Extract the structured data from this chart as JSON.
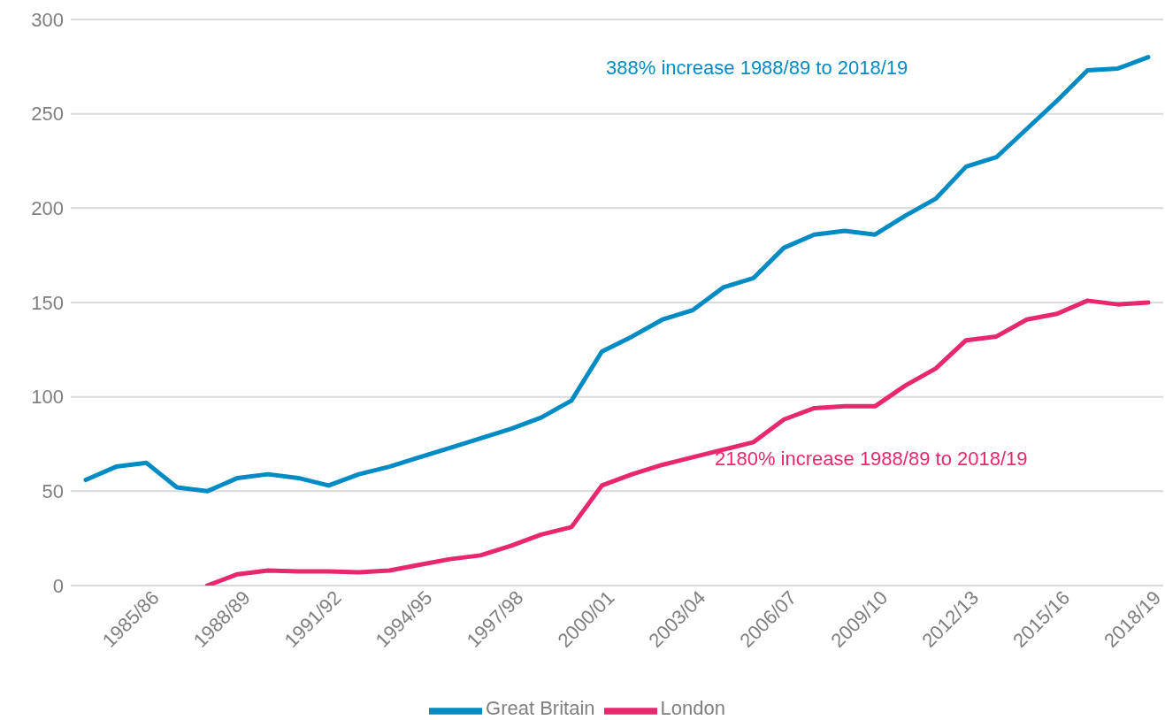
{
  "chart_data": {
    "type": "line",
    "categories": [
      null,
      null,
      "1985/86",
      null,
      null,
      "1988/89",
      null,
      null,
      "1991/92",
      null,
      null,
      "1994/95",
      null,
      null,
      "1997/98",
      null,
      null,
      "2000/01",
      null,
      null,
      "2003/04",
      null,
      null,
      "2006/07",
      null,
      null,
      "2009/10",
      null,
      null,
      "2012/13",
      null,
      null,
      "2015/16",
      null,
      null,
      "2018/19"
    ],
    "series": [
      {
        "name": "London",
        "color": "#e8286e",
        "values": [
          null,
          null,
          null,
          null,
          0,
          6,
          8,
          7.5,
          7.5,
          7,
          8,
          11,
          14,
          16,
          21,
          27,
          31,
          53,
          59,
          64,
          68,
          72,
          76,
          88,
          94,
          95,
          95,
          106,
          115,
          130,
          132,
          141,
          144,
          151,
          149,
          150
        ]
      },
      {
        "name": "Great Britain",
        "color": "#008bc4",
        "values": [
          56,
          63,
          65,
          52,
          50,
          57,
          59,
          57,
          53,
          59,
          63,
          68,
          73,
          78,
          83,
          89,
          98,
          124,
          132,
          141,
          146,
          158,
          163,
          179,
          186,
          188,
          186,
          196,
          205,
          222,
          227,
          242,
          257,
          273,
          274,
          280
        ]
      }
    ],
    "ylim": [
      0,
      300
    ],
    "yticks": [
      0,
      50,
      100,
      150,
      200,
      250,
      300
    ],
    "grid": "y",
    "legend": "bottom",
    "marker": "none",
    "line_style": "solid",
    "annotations": [
      "2180% increase 1988/89 to 2018/19",
      "388% increase 1988/89 to 2018/19"
    ]
  }
}
